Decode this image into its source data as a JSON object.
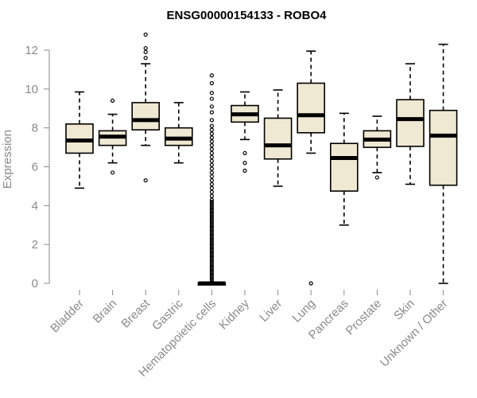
{
  "chart_data": {
    "type": "boxplot",
    "title": "ENSG00000154133 - ROBO4",
    "xlabel": "",
    "ylabel": "Expression",
    "ylim": [
      0,
      12
    ],
    "yticks": [
      0,
      2,
      4,
      6,
      8,
      10,
      12
    ],
    "grid": false,
    "categories": [
      "Bladder",
      "Brain",
      "Breast",
      "Gastric",
      "Hematopoietic cells",
      "Kidney",
      "Liver",
      "Lung",
      "Pancreas",
      "Prostate",
      "Skin",
      "Unknown / Other"
    ],
    "boxes": [
      {
        "name": "Bladder",
        "whisker_low": 4.9,
        "q1": 6.7,
        "median": 7.35,
        "q3": 8.2,
        "whisker_high": 9.85,
        "outliers": []
      },
      {
        "name": "Brain",
        "whisker_low": 6.2,
        "q1": 7.1,
        "median": 7.55,
        "q3": 7.85,
        "whisker_high": 8.7,
        "outliers": [
          5.7,
          9.4
        ]
      },
      {
        "name": "Breast",
        "whisker_low": 7.1,
        "q1": 7.9,
        "median": 8.4,
        "q3": 9.3,
        "whisker_high": 11.3,
        "outliers": [
          5.3,
          11.6,
          11.9,
          12.1,
          12.8
        ]
      },
      {
        "name": "Gastric",
        "whisker_low": 6.2,
        "q1": 7.1,
        "median": 7.45,
        "q3": 8.0,
        "whisker_high": 9.3,
        "outliers": []
      },
      {
        "name": "Hematopoietic cells",
        "whisker_low": 0,
        "q1": 0,
        "median": 0,
        "q3": 0.02,
        "whisker_high": 0.05,
        "outliers": [
          0.1,
          0.2,
          0.3,
          0.4,
          0.5,
          0.6,
          0.7,
          0.8,
          0.9,
          1.0,
          1.1,
          1.2,
          1.3,
          1.4,
          1.5,
          1.6,
          1.7,
          1.8,
          1.9,
          2.0,
          2.1,
          2.2,
          2.3,
          2.4,
          2.5,
          2.6,
          2.7,
          2.8,
          2.9,
          3.0,
          3.1,
          3.2,
          3.3,
          3.4,
          3.5,
          3.6,
          3.7,
          3.8,
          3.9,
          4.0,
          4.1,
          4.2,
          4.3,
          4.5,
          4.7,
          4.9,
          5.1,
          5.3,
          5.5,
          5.7,
          5.9,
          6.1,
          6.3,
          6.5,
          6.7,
          6.9,
          7.1,
          7.3,
          7.5,
          7.7,
          7.9,
          8.1,
          8.4,
          8.8,
          9.1,
          9.5,
          9.8,
          10.3,
          10.7
        ]
      },
      {
        "name": "Kidney",
        "whisker_low": 7.4,
        "q1": 8.3,
        "median": 8.7,
        "q3": 9.15,
        "whisker_high": 9.85,
        "outliers": [
          5.8,
          6.2,
          6.7
        ]
      },
      {
        "name": "Liver",
        "whisker_low": 5.0,
        "q1": 6.4,
        "median": 7.1,
        "q3": 8.5,
        "whisker_high": 9.95,
        "outliers": []
      },
      {
        "name": "Lung",
        "whisker_low": 6.7,
        "q1": 7.75,
        "median": 8.65,
        "q3": 10.3,
        "whisker_high": 11.95,
        "outliers": [
          0.0
        ]
      },
      {
        "name": "Pancreas",
        "whisker_low": 3.0,
        "q1": 4.75,
        "median": 6.45,
        "q3": 7.2,
        "whisker_high": 8.75,
        "outliers": []
      },
      {
        "name": "Prostate",
        "whisker_low": 5.7,
        "q1": 7.0,
        "median": 7.4,
        "q3": 7.85,
        "whisker_high": 8.6,
        "outliers": [
          5.45
        ]
      },
      {
        "name": "Skin",
        "whisker_low": 5.1,
        "q1": 7.05,
        "median": 8.45,
        "q3": 9.45,
        "whisker_high": 11.3,
        "outliers": []
      },
      {
        "name": "Unknown / Other",
        "whisker_low": 0.0,
        "q1": 5.05,
        "median": 7.6,
        "q3": 8.9,
        "whisker_high": 12.3,
        "outliers": []
      }
    ]
  },
  "colors": {
    "box_fill": "#efe8d2",
    "box_stroke": "#000000",
    "axis": "#8a8a8a",
    "text": "#8a8a8a",
    "title": "#000000"
  }
}
